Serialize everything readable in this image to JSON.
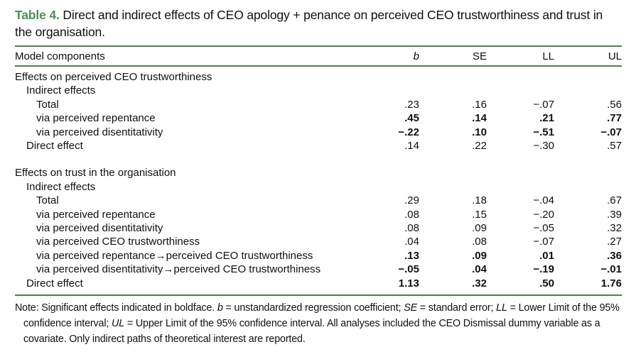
{
  "title": {
    "label": "Table 4.",
    "text": " Direct and indirect effects of CEO apology + penance on perceived CEO trustworthiness and trust in the organisation."
  },
  "columns": [
    "Model components",
    "b",
    "SE",
    "LL",
    "UL"
  ],
  "sections": [
    {
      "header": "Effects on perceived CEO trustworthiness",
      "rows": [
        {
          "label": "Indirect effects",
          "indent": 1,
          "bold": false,
          "values": []
        },
        {
          "label": "Total",
          "indent": 2,
          "bold": false,
          "values": [
            ".23",
            ".16",
            "−.07",
            ".56"
          ]
        },
        {
          "label": "via perceived repentance",
          "indent": 2,
          "bold": true,
          "values": [
            ".45",
            ".14",
            ".21",
            ".77"
          ]
        },
        {
          "label": "via perceived disentitativity",
          "indent": 2,
          "bold": true,
          "values": [
            "−.22",
            ".10",
            "−.51",
            "−.07"
          ]
        },
        {
          "label": "Direct effect",
          "indent": 1,
          "bold": false,
          "values": [
            ".14",
            ".22",
            "−.30",
            ".57"
          ]
        }
      ]
    },
    {
      "header": "Effects on trust in the organisation",
      "rows": [
        {
          "label": "Indirect effects",
          "indent": 1,
          "bold": false,
          "values": []
        },
        {
          "label": "Total",
          "indent": 2,
          "bold": false,
          "values": [
            ".29",
            ".18",
            "−.04",
            ".67"
          ]
        },
        {
          "label": "via perceived repentance",
          "indent": 2,
          "bold": false,
          "values": [
            ".08",
            ".15",
            "−.20",
            ".39"
          ]
        },
        {
          "label": "via perceived disentitativity",
          "indent": 2,
          "bold": false,
          "values": [
            ".08",
            ".09",
            "−.05",
            ".32"
          ]
        },
        {
          "label": "via perceived CEO trustworthiness",
          "indent": 2,
          "bold": false,
          "values": [
            ".04",
            ".08",
            "−.07",
            ".27"
          ]
        },
        {
          "label": "via perceived repentance→perceived CEO trustworthiness",
          "indent": 2,
          "bold": true,
          "values": [
            ".13",
            ".09",
            ".01",
            ".36"
          ]
        },
        {
          "label": "via perceived disentitativity→perceived CEO trustworthiness",
          "indent": 2,
          "bold": true,
          "values": [
            "−.05",
            ".04",
            "−.19",
            "−.01"
          ]
        },
        {
          "label": "Direct effect",
          "indent": 1,
          "bold": true,
          "values": [
            "1.13",
            ".32",
            ".50",
            "1.76"
          ]
        }
      ]
    }
  ],
  "note": {
    "segments": [
      {
        "text": "Note: Significant effects indicated in boldface. ",
        "italic": false
      },
      {
        "text": "b",
        "italic": true
      },
      {
        "text": " = unstandardized regression coefficient; ",
        "italic": false
      },
      {
        "text": "SE",
        "italic": true
      },
      {
        "text": " = standard error; ",
        "italic": false
      },
      {
        "text": "LL",
        "italic": true
      },
      {
        "text": " = Lower Limit of the 95% confidence interval; ",
        "italic": false
      },
      {
        "text": "UL",
        "italic": true
      },
      {
        "text": " = Upper Limit of the 95% confidence interval. All analyses included the CEO Dismissal dummy variable as a covariate. Only indirect paths of theoretical interest are reported.",
        "italic": false
      }
    ]
  },
  "colors": {
    "accent_green_title": "#4a9153",
    "accent_green_rules": "#47854a"
  }
}
